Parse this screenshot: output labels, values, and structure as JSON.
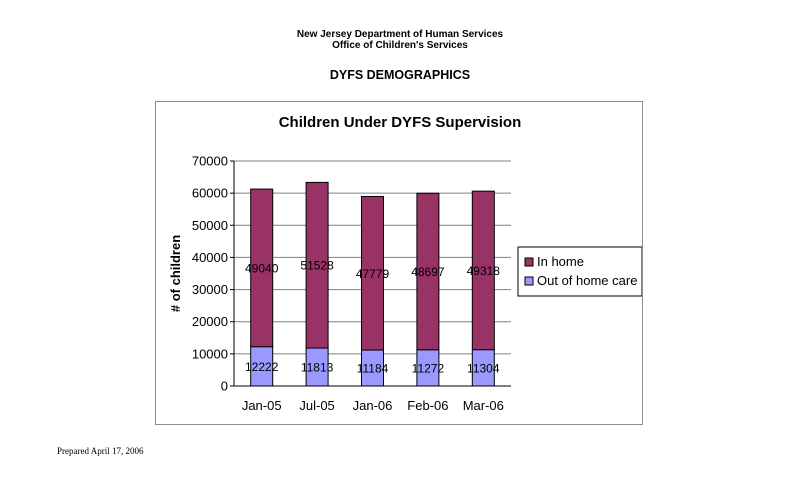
{
  "header": {
    "org_line1": "New Jersey Department of Human Services",
    "org_line2": "Office of Children's Services",
    "doc_title": "DYFS DEMOGRAPHICS"
  },
  "footer": {
    "prepared": "Prepared April 17, 2006"
  },
  "chart_data": {
    "type": "bar",
    "stacked": true,
    "title": "Children Under DYFS Supervision",
    "xlabel": "",
    "ylabel": "# of children",
    "ylim": [
      0,
      70000
    ],
    "ytick_step": 10000,
    "grid": true,
    "legend_position": "right",
    "categories": [
      "Jan-05",
      "Jul-05",
      "Jan-06",
      "Feb-06",
      "Mar-06"
    ],
    "series": [
      {
        "name": "Out of home care",
        "color": "#9999ff",
        "values": [
          12222,
          11813,
          11184,
          11272,
          11304
        ]
      },
      {
        "name": "In home",
        "color": "#993366",
        "values": [
          49040,
          51528,
          47779,
          48697,
          49318
        ]
      }
    ],
    "legend_order": [
      "In home",
      "Out of home care"
    ]
  }
}
